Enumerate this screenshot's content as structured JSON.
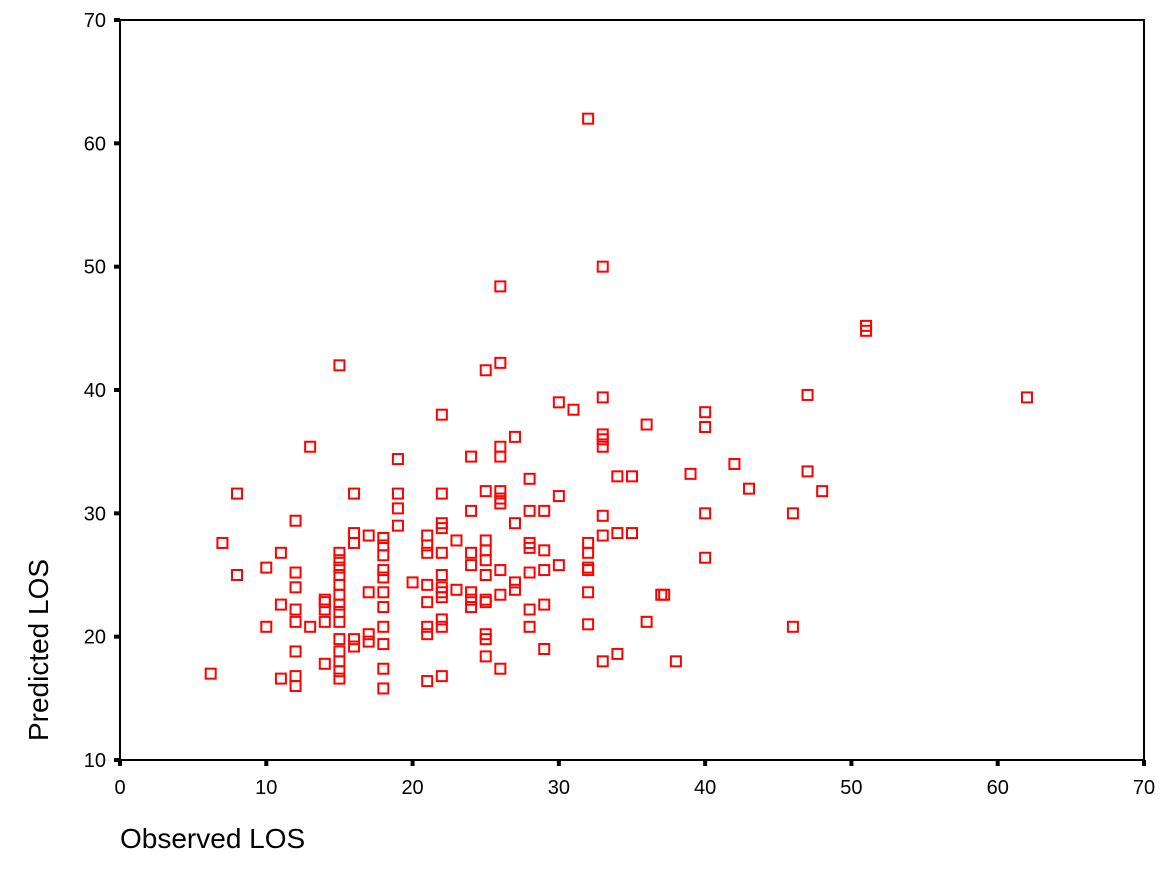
{
  "chart_data": {
    "type": "scatter",
    "title": "",
    "xlabel": "Observed LOS",
    "ylabel": "Predicted LOS",
    "xlim": [
      0,
      70
    ],
    "ylim": [
      10,
      70
    ],
    "xticks": [
      0,
      10,
      20,
      30,
      40,
      50,
      60,
      70
    ],
    "yticks": [
      10,
      20,
      30,
      40,
      50,
      60,
      70
    ],
    "grid": false,
    "marker": "open-square",
    "marker_color": "#ff0000",
    "series": [
      {
        "name": "",
        "points": [
          [
            6.2,
            17.0
          ],
          [
            7,
            27.6
          ],
          [
            8,
            25.0
          ],
          [
            8,
            31.6
          ],
          [
            10,
            20.8
          ],
          [
            10,
            25.6
          ],
          [
            11,
            16.6
          ],
          [
            11,
            22.6
          ],
          [
            11,
            26.8
          ],
          [
            12,
            16.0
          ],
          [
            12,
            16.8
          ],
          [
            12,
            18.8
          ],
          [
            12,
            21.2
          ],
          [
            12,
            22.2
          ],
          [
            12,
            24.0
          ],
          [
            12,
            25.2
          ],
          [
            12,
            29.4
          ],
          [
            13,
            20.8
          ],
          [
            13,
            35.4
          ],
          [
            14,
            17.8
          ],
          [
            14,
            21.2
          ],
          [
            14,
            22.2
          ],
          [
            14,
            22.8
          ],
          [
            14,
            23.0
          ],
          [
            15,
            16.6
          ],
          [
            15,
            17.2
          ],
          [
            15,
            18.0
          ],
          [
            15,
            18.8
          ],
          [
            15,
            19.8
          ],
          [
            15,
            21.2
          ],
          [
            15,
            22.0
          ],
          [
            15,
            22.6
          ],
          [
            15,
            23.4
          ],
          [
            15,
            24.2
          ],
          [
            15,
            25.0
          ],
          [
            15,
            25.6
          ],
          [
            15,
            26.2
          ],
          [
            15,
            26.8
          ],
          [
            15,
            42.0
          ],
          [
            16,
            19.2
          ],
          [
            16,
            19.8
          ],
          [
            16,
            27.6
          ],
          [
            16,
            28.4
          ],
          [
            16,
            31.6
          ],
          [
            17,
            19.6
          ],
          [
            17,
            20.2
          ],
          [
            17,
            23.6
          ],
          [
            17,
            28.2
          ],
          [
            18,
            15.8
          ],
          [
            18,
            17.4
          ],
          [
            18,
            19.4
          ],
          [
            18,
            20.8
          ],
          [
            18,
            22.4
          ],
          [
            18,
            23.6
          ],
          [
            18,
            24.8
          ],
          [
            18,
            25.4
          ],
          [
            18,
            26.6
          ],
          [
            18,
            27.4
          ],
          [
            18,
            28.0
          ],
          [
            19,
            29.0
          ],
          [
            19,
            30.4
          ],
          [
            19,
            31.6
          ],
          [
            19,
            34.4
          ],
          [
            20,
            24.4
          ],
          [
            21,
            16.4
          ],
          [
            21,
            20.2
          ],
          [
            21,
            20.8
          ],
          [
            21,
            22.8
          ],
          [
            21,
            24.2
          ],
          [
            21,
            26.8
          ],
          [
            21,
            27.4
          ],
          [
            21,
            28.2
          ],
          [
            22,
            16.8
          ],
          [
            22,
            20.8
          ],
          [
            22,
            21.4
          ],
          [
            22,
            23.2
          ],
          [
            22,
            23.6
          ],
          [
            22,
            24.0
          ],
          [
            22,
            25.0
          ],
          [
            22,
            26.8
          ],
          [
            22,
            28.8
          ],
          [
            22,
            29.2
          ],
          [
            22,
            31.6
          ],
          [
            22,
            38.0
          ],
          [
            23,
            23.8
          ],
          [
            23,
            27.8
          ],
          [
            24,
            22.4
          ],
          [
            24,
            23.0
          ],
          [
            24,
            23.6
          ],
          [
            24,
            25.8
          ],
          [
            24,
            26.8
          ],
          [
            24,
            30.2
          ],
          [
            24,
            34.6
          ],
          [
            25,
            18.4
          ],
          [
            25,
            19.8
          ],
          [
            25,
            20.2
          ],
          [
            25,
            22.8
          ],
          [
            25,
            23.0
          ],
          [
            25,
            25.0
          ],
          [
            25,
            26.2
          ],
          [
            25,
            27.0
          ],
          [
            25,
            27.8
          ],
          [
            25,
            31.8
          ],
          [
            25,
            41.6
          ],
          [
            26,
            17.4
          ],
          [
            26,
            23.4
          ],
          [
            26,
            25.4
          ],
          [
            26,
            30.8
          ],
          [
            26,
            31.2
          ],
          [
            26,
            31.8
          ],
          [
            26,
            34.6
          ],
          [
            26,
            35.4
          ],
          [
            26,
            42.2
          ],
          [
            26,
            48.4
          ],
          [
            27,
            23.8
          ],
          [
            27,
            24.4
          ],
          [
            27,
            29.2
          ],
          [
            27,
            36.2
          ],
          [
            28,
            20.8
          ],
          [
            28,
            22.2
          ],
          [
            28,
            25.2
          ],
          [
            28,
            27.2
          ],
          [
            28,
            27.6
          ],
          [
            28,
            30.2
          ],
          [
            28,
            32.8
          ],
          [
            29,
            19.0
          ],
          [
            29,
            22.6
          ],
          [
            29,
            25.4
          ],
          [
            29,
            27.0
          ],
          [
            29,
            30.2
          ],
          [
            30,
            25.8
          ],
          [
            30,
            31.4
          ],
          [
            30,
            39.0
          ],
          [
            31,
            38.4
          ],
          [
            32,
            21.0
          ],
          [
            32,
            23.6
          ],
          [
            32,
            25.4
          ],
          [
            32,
            25.6
          ],
          [
            32,
            26.8
          ],
          [
            32,
            27.6
          ],
          [
            32,
            62.0
          ],
          [
            33,
            18.0
          ],
          [
            33,
            28.2
          ],
          [
            33,
            29.8
          ],
          [
            33,
            35.4
          ],
          [
            33,
            36.0
          ],
          [
            33,
            36.4
          ],
          [
            33,
            39.4
          ],
          [
            33,
            50.0
          ],
          [
            34,
            18.6
          ],
          [
            34,
            28.4
          ],
          [
            34,
            33.0
          ],
          [
            35,
            28.4
          ],
          [
            35,
            33.0
          ],
          [
            36,
            21.2
          ],
          [
            36,
            37.2
          ],
          [
            37,
            23.4
          ],
          [
            37.2,
            23.4
          ],
          [
            38,
            18.0
          ],
          [
            39,
            33.2
          ],
          [
            40,
            26.4
          ],
          [
            40,
            30.0
          ],
          [
            40,
            37.0
          ],
          [
            40,
            38.2
          ],
          [
            42,
            34.0
          ],
          [
            43,
            32.0
          ],
          [
            46,
            20.8
          ],
          [
            46,
            30.0
          ],
          [
            47,
            33.4
          ],
          [
            47,
            39.6
          ],
          [
            48,
            31.8
          ],
          [
            51,
            44.8
          ],
          [
            51,
            45.2
          ],
          [
            62,
            39.4
          ]
        ]
      }
    ]
  }
}
